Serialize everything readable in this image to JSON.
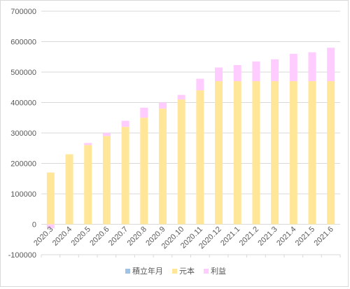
{
  "chart_data": {
    "type": "bar",
    "stacked": true,
    "categories": [
      "2020.3",
      "2020.4",
      "2020.5",
      "2020.6",
      "2020.7",
      "2020.8",
      "2020.9",
      "2020.10",
      "2020.11",
      "2020.12",
      "2021.1",
      "2021.2",
      "2021.3",
      "2021.4",
      "2021.5",
      "2021.6"
    ],
    "ylim": [
      -100000,
      700000
    ],
    "yticks": [
      -100000,
      0,
      100000,
      200000,
      300000,
      400000,
      500000,
      600000,
      700000
    ],
    "grid": true,
    "legend_position": "bottom",
    "series": [
      {
        "name": "積立年月",
        "color": "#9dc3e6",
        "values": [
          0,
          0,
          0,
          0,
          0,
          0,
          0,
          0,
          0,
          0,
          0,
          0,
          0,
          0,
          0,
          0
        ]
      },
      {
        "name": "元本",
        "color": "#ffe699",
        "values": [
          170000,
          230000,
          260000,
          290000,
          320000,
          350000,
          380000,
          410000,
          440000,
          470000,
          470000,
          470000,
          470000,
          470000,
          470000,
          470000
        ]
      },
      {
        "name": "利益",
        "color": "#ffccff",
        "values": [
          -13000,
          0,
          7000,
          10000,
          20000,
          33000,
          20000,
          15000,
          38000,
          45000,
          53000,
          65000,
          72000,
          90000,
          95000,
          110000
        ]
      }
    ]
  }
}
